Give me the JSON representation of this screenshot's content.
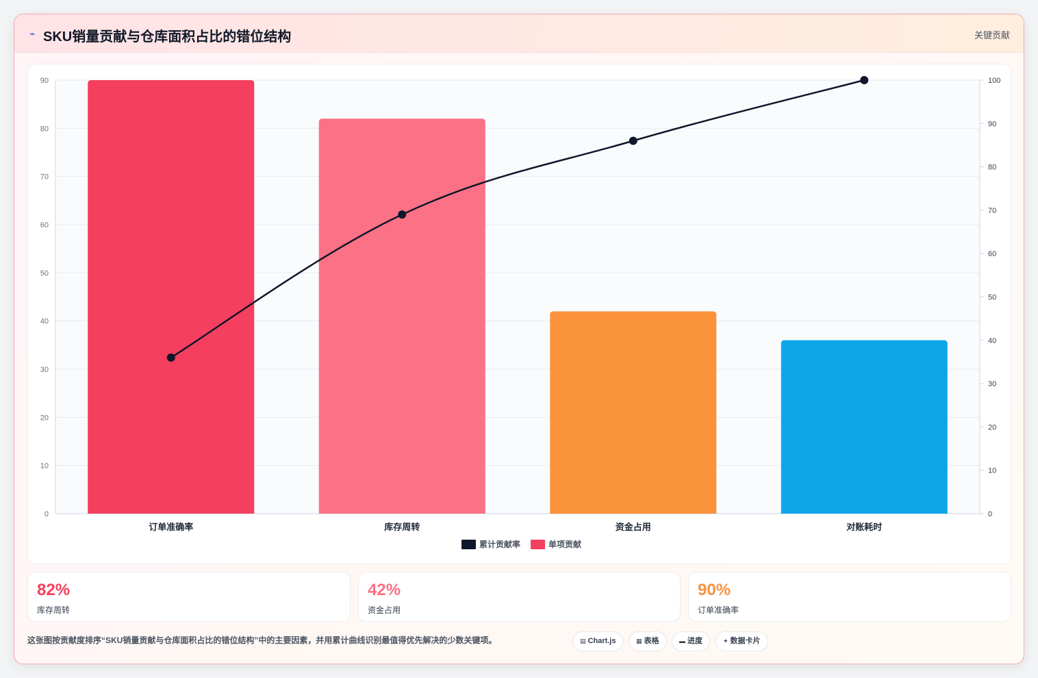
{
  "header": {
    "icon": "chart-line-icon",
    "title": "SKU销量贡献与仓库面积占比的错位结构",
    "tag": "关键贡献"
  },
  "chart_data": {
    "type": "bar",
    "categories": [
      "订单准确率",
      "库存周转",
      "资金占用",
      "对账耗时"
    ],
    "series": [
      {
        "name": "单项贡献",
        "type": "bar",
        "axis": "left",
        "values": [
          90,
          82,
          42,
          36
        ],
        "colors": [
          "#f43f5e",
          "#fb7185",
          "#fb923c",
          "#0ea5e9"
        ]
      },
      {
        "name": "累计贡献率",
        "type": "line",
        "axis": "right",
        "values": [
          36,
          69,
          86,
          100
        ],
        "color": "#0f172a"
      }
    ],
    "y_left": {
      "min": 0,
      "max": 90,
      "ticks": [
        0,
        10,
        20,
        30,
        40,
        50,
        60,
        70,
        80,
        90
      ]
    },
    "y_right": {
      "min": 0,
      "max": 100,
      "ticks": [
        0,
        10,
        20,
        30,
        40,
        50,
        60,
        70,
        80,
        90,
        100
      ]
    },
    "legend": [
      {
        "label": "累计贡献率",
        "color": "#0f172a"
      },
      {
        "label": "单项贡献",
        "color": "#f43f5e"
      }
    ],
    "legend_position": "bottom",
    "grid": true
  },
  "stats": [
    {
      "value": "82%",
      "label": "库存周转",
      "color": "#f43f5e"
    },
    {
      "value": "42%",
      "label": "资金占用",
      "color": "#fb7185"
    },
    {
      "value": "90%",
      "label": "订单准确率",
      "color": "#fb923c"
    }
  ],
  "footer": {
    "text": "这张图按贡献度排序“SKU销量贡献与仓库面积占比的错位结构”中的主要因素，并用累计曲线识别最值得优先解决的少数关键项。",
    "chips": [
      {
        "icon": "▤",
        "label": "Chart.js"
      },
      {
        "icon": "▦",
        "label": "表格"
      },
      {
        "icon": "▬",
        "label": "进度"
      },
      {
        "icon": "✦",
        "label": "数据卡片"
      }
    ]
  }
}
